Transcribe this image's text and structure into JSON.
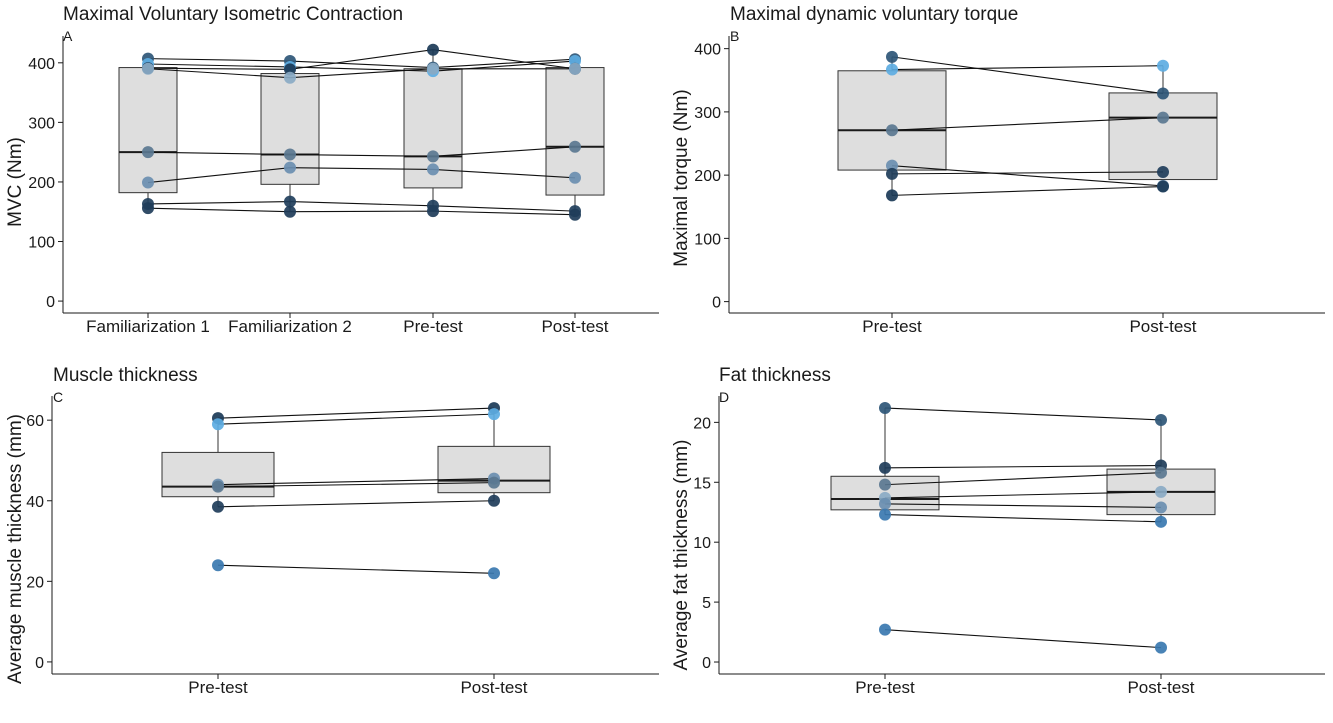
{
  "chart_data": [
    {
      "type": "box",
      "title": "Maximal Voluntary Isometric Contraction",
      "tag": "A",
      "xlabel": "",
      "ylabel": "MVC (Nm)",
      "categories": [
        "Familiarization 1",
        "Familiarization 2",
        "Pre-test",
        "Post-test"
      ],
      "ylim": [
        -20,
        445
      ],
      "yticks": [
        0,
        100,
        200,
        300,
        400
      ],
      "boxes": [
        {
          "q1": 182,
          "median": 250,
          "q3": 392,
          "whisker_low": 155,
          "whisker_high": 407
        },
        {
          "q1": 196,
          "median": 246,
          "q3": 382,
          "whisker_low": 150,
          "whisker_high": 403
        },
        {
          "q1": 190,
          "median": 243,
          "q3": 390,
          "whisker_low": 151,
          "whisker_high": 422
        },
        {
          "q1": 178,
          "median": 259,
          "q3": 392,
          "whisker_low": 145,
          "whisker_high": 406
        }
      ],
      "subjects": [
        {
          "values": [
            407,
            403,
            392,
            406
          ],
          "color": "#2e5677"
        },
        {
          "values": [
            398,
            393,
            386,
            403
          ],
          "color": "#5dade2"
        },
        {
          "values": [
            391,
            389,
            422,
            390
          ],
          "color": "#1b3a57"
        },
        {
          "values": [
            390,
            375,
            390,
            390
          ],
          "color": "#8aaac4"
        },
        {
          "values": [
            250,
            246,
            243,
            259
          ],
          "color": "#5a7790"
        },
        {
          "values": [
            199,
            224,
            221,
            207
          ],
          "color": "#6a8eb0"
        },
        {
          "values": [
            163,
            167,
            160,
            151
          ],
          "color": "#213f5c"
        },
        {
          "values": [
            156,
            150,
            151,
            145
          ],
          "color": "#1f3d5a"
        }
      ],
      "grid": false
    },
    {
      "type": "box",
      "title": "Maximal dynamic voluntary torque",
      "tag": "B",
      "xlabel": "",
      "ylabel": "Maximal torque (Nm)",
      "categories": [
        "Pre-test",
        "Post-test"
      ],
      "ylim": [
        -18,
        420
      ],
      "yticks": [
        0,
        100,
        200,
        300,
        400
      ],
      "boxes": [
        {
          "q1": 208,
          "median": 271,
          "q3": 365,
          "whisker_low": 168,
          "whisker_high": 387
        },
        {
          "q1": 193,
          "median": 291,
          "q3": 330,
          "whisker_low": 180,
          "whisker_high": 373
        }
      ],
      "subjects": [
        {
          "values": [
            387,
            329
          ],
          "color": "#2e5677"
        },
        {
          "values": [
            367,
            373
          ],
          "color": "#5dade2"
        },
        {
          "values": [
            271,
            291
          ],
          "color": "#5a7790"
        },
        {
          "values": [
            215,
            183
          ],
          "color": "#6a8eb0"
        },
        {
          "values": [
            202,
            205
          ],
          "color": "#1f3d5a"
        },
        {
          "values": [
            168,
            182
          ],
          "color": "#1b3a57"
        }
      ],
      "grid": false
    },
    {
      "type": "box",
      "title": "Muscle thickness",
      "tag": "C",
      "xlabel": "",
      "ylabel": "Average muscle thickness (mm)",
      "categories": [
        "Pre-test",
        "Post-test"
      ],
      "ylim": [
        -3,
        66
      ],
      "yticks": [
        0,
        20,
        40,
        60
      ],
      "boxes": [
        {
          "q1": 41,
          "median": 43.5,
          "q3": 52,
          "whisker_low": 38.5,
          "whisker_high": 60.5
        },
        {
          "q1": 42,
          "median": 45,
          "q3": 53.5,
          "whisker_low": 40,
          "whisker_high": 63
        }
      ],
      "subjects": [
        {
          "values": [
            60.5,
            63
          ],
          "color": "#1b3a57"
        },
        {
          "values": [
            59,
            61.5
          ],
          "color": "#5dade2"
        },
        {
          "values": [
            44,
            45.5
          ],
          "color": "#6a8eb0"
        },
        {
          "values": [
            43.5,
            44.5
          ],
          "color": "#5a7790"
        },
        {
          "values": [
            38.5,
            40
          ],
          "color": "#1f3d5a"
        },
        {
          "values": [
            24,
            22
          ],
          "color": "#3a78b0"
        }
      ],
      "grid": false
    },
    {
      "type": "box",
      "title": "Fat thickness",
      "tag": "D",
      "xlabel": "",
      "ylabel": "Average fat thickness (mm)",
      "categories": [
        "Pre-test",
        "Post-test"
      ],
      "ylim": [
        -1,
        22.2
      ],
      "yticks": [
        0,
        5,
        10,
        15,
        20
      ],
      "boxes": [
        {
          "q1": 12.7,
          "median": 13.6,
          "q3": 15.5,
          "whisker_low": 12.3,
          "whisker_high": 21.2
        },
        {
          "q1": 12.3,
          "median": 14.2,
          "q3": 16.1,
          "whisker_low": 11.7,
          "whisker_high": 20.2
        }
      ],
      "subjects": [
        {
          "values": [
            21.2,
            20.2
          ],
          "color": "#2e5677"
        },
        {
          "values": [
            16.2,
            16.4
          ],
          "color": "#1f3d5a"
        },
        {
          "values": [
            14.8,
            15.8
          ],
          "color": "#5a7790"
        },
        {
          "values": [
            13.7,
            14.2
          ],
          "color": "#8aaac4"
        },
        {
          "values": [
            13.2,
            12.9
          ],
          "color": "#6a8eb0"
        },
        {
          "values": [
            12.3,
            11.7
          ],
          "color": "#3a78b0"
        },
        {
          "values": [
            2.7,
            1.2
          ],
          "color": "#3a78b0"
        }
      ],
      "grid": false
    }
  ]
}
